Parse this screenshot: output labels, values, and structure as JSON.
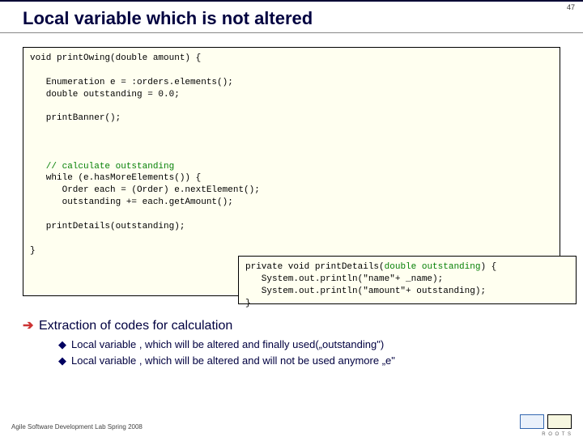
{
  "page": {
    "number": "47"
  },
  "title": "Local variable which is not altered",
  "code_main": {
    "line1": "void printOwing(double amount) {",
    "line2": "",
    "line3": "   Enumeration e = :orders.elements();",
    "line4": "   double outstanding = 0.0;",
    "line5": "",
    "line6": "   printBanner();",
    "line7": "",
    "line8": "",
    "line9": "",
    "comment": "   // calculate outstanding",
    "line10": "   while (e.hasMoreElements()) {",
    "line11": "      Order each = (Order) e.nextElement();",
    "line12": "      outstanding += each.getAmount();",
    "line13": "",
    "line14": "   printDetails(outstanding);",
    "line15": "",
    "line16": "}"
  },
  "code_sub": {
    "sig_pre": "private void printDetails(",
    "sig_param": "double outstanding",
    "sig_post": ") {",
    "l2": "   System.out.println(\"name\"+ _name);",
    "l3": "   System.out.println(\"amount\"+ outstanding);",
    "l4": "}"
  },
  "bullets": {
    "main": "Extraction of codes for calculation",
    "sub1": "Local variable , which will be altered and finally used(„outstanding\")",
    "sub2": "Local variable , which will be altered and will not be used anymore „e\""
  },
  "footer": "Agile Software Development Lab Spring 2008",
  "logo_text": "R O O T S",
  "colors": {
    "code_bg": "#fffff0",
    "comment": "#068006",
    "title": "#000040",
    "arrow": "#cc3333"
  }
}
